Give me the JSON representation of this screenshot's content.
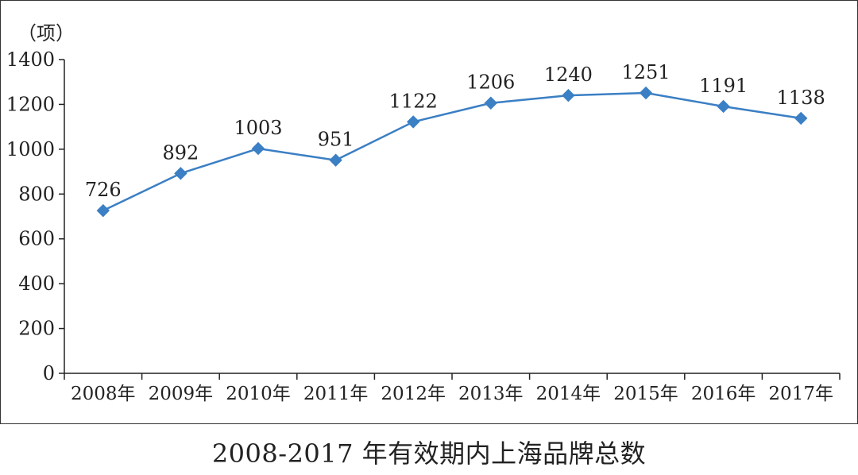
{
  "caption": "2008-2017 年有效期内上海品牌总数",
  "colors": {
    "line": "#3b7fc4",
    "marker": "#3b7fc4",
    "axis": "#222222",
    "frame": "#333333"
  },
  "chart_data": {
    "type": "line",
    "ylabel": "（项）",
    "ylim": [
      0,
      1400
    ],
    "yticks": [
      0,
      200,
      400,
      600,
      800,
      1000,
      1200,
      1400
    ],
    "categories": [
      "2008年",
      "2009年",
      "2010年",
      "2011年",
      "2012年",
      "2013年",
      "2014年",
      "2015年",
      "2016年",
      "2017年"
    ],
    "series": [
      {
        "values": [
          726,
          892,
          1003,
          951,
          1122,
          1206,
          1240,
          1251,
          1191,
          1138
        ]
      }
    ],
    "data_labels": [
      "726",
      "892",
      "1003",
      "951",
      "1122",
      "1206",
      "1240",
      "1251",
      "1191",
      "1138"
    ],
    "grid": false,
    "marker": "diamond"
  }
}
